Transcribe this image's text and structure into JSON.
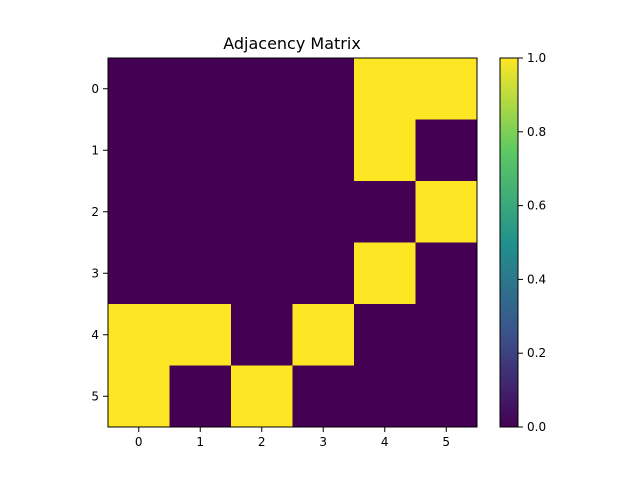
{
  "chart_data": {
    "type": "heatmap",
    "title": "Adjacency Matrix",
    "xlabel": "",
    "ylabel": "",
    "x_tick_labels": [
      "0",
      "1",
      "2",
      "3",
      "4",
      "5"
    ],
    "y_tick_labels": [
      "0",
      "1",
      "2",
      "3",
      "4",
      "5"
    ],
    "matrix": [
      [
        0,
        0,
        0,
        0,
        1,
        1
      ],
      [
        0,
        0,
        0,
        0,
        1,
        0
      ],
      [
        0,
        0,
        0,
        0,
        0,
        1
      ],
      [
        0,
        0,
        0,
        0,
        1,
        0
      ],
      [
        1,
        1,
        0,
        1,
        0,
        0
      ],
      [
        1,
        0,
        1,
        0,
        0,
        0
      ]
    ],
    "colormap": "viridis",
    "color_low": "#440154",
    "color_high": "#fde725",
    "value_range": [
      0,
      1
    ],
    "colorbar": {
      "ticks": [
        0.0,
        0.2,
        0.4,
        0.6,
        0.8,
        1.0
      ],
      "tick_labels": [
        "0.0",
        "0.2",
        "0.4",
        "0.6",
        "0.8",
        "1.0"
      ],
      "position": "right"
    },
    "grid": false
  }
}
